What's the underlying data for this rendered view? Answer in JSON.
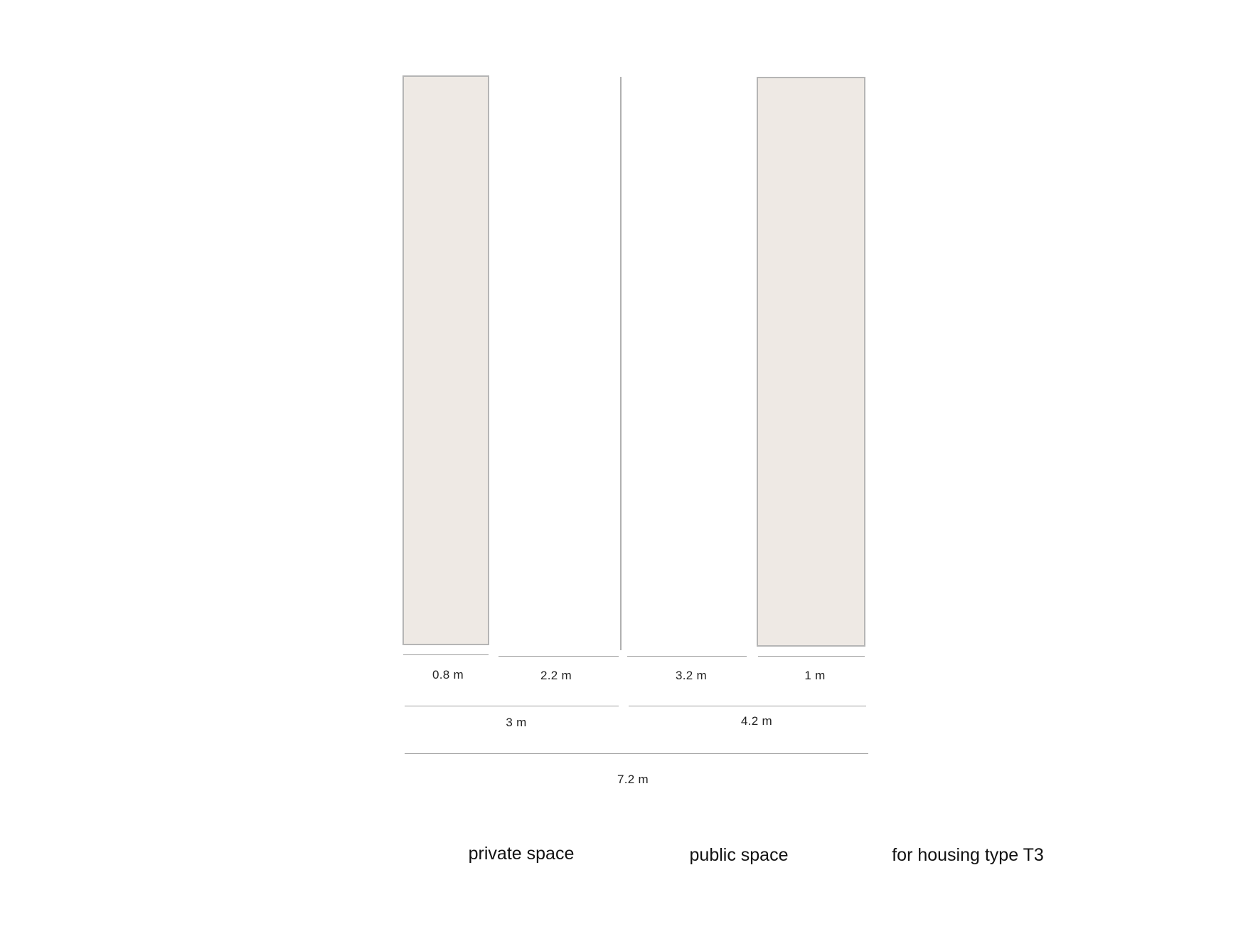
{
  "diagram": {
    "dimensions": {
      "seg_private_building": "0.8 m",
      "seg_private_open": "2.2 m",
      "seg_public_open": "3.2 m",
      "seg_public_building": "1 m",
      "total_private": "3 m",
      "total_public": "4.2 m",
      "total_width": "7.2 m"
    },
    "captions": {
      "private": "private space",
      "public": "public space",
      "housing": "for housing type T3"
    },
    "colors": {
      "building_fill": "#eee9e4",
      "building_stroke": "#b5b5b5",
      "line": "#9c9c9c"
    }
  }
}
